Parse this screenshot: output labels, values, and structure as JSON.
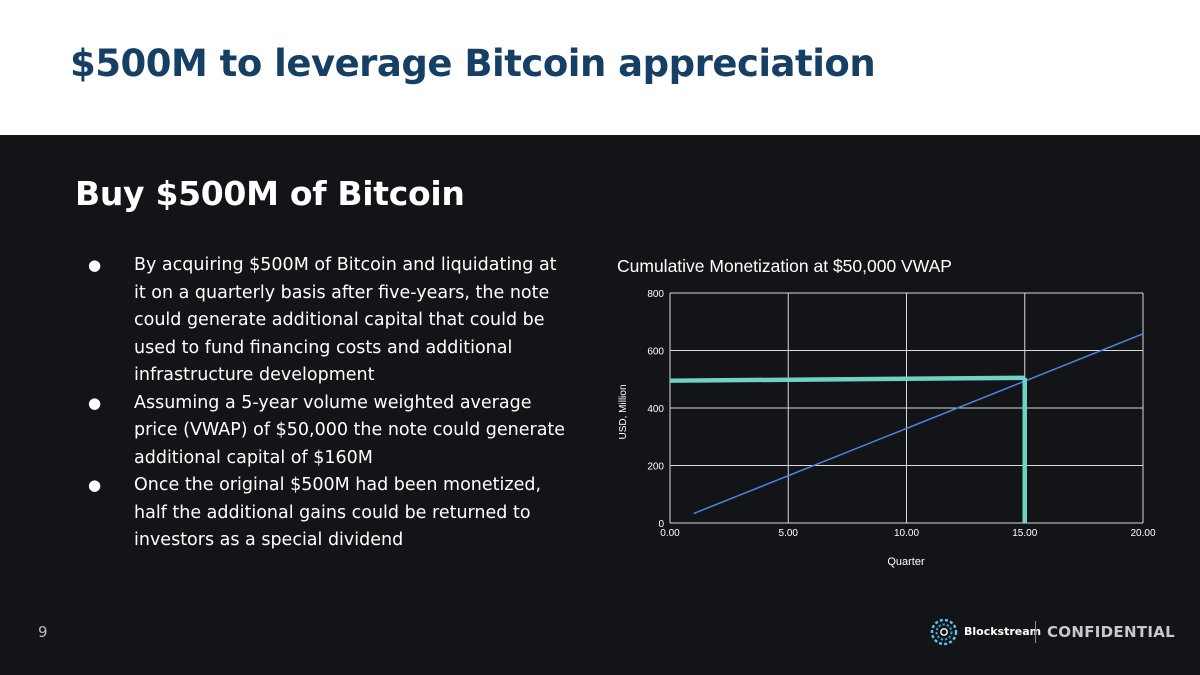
{
  "slide": {
    "title": "$500M to leverage Bitcoin appreciation",
    "section_title": "Buy $500M of Bitcoin",
    "page_number": "9"
  },
  "bullets": [
    "By acquiring $500M of Bitcoin and liquidating at it on a quarterly basis after five-years, the note could generate additional capital that could be used to fund financing costs and additional infrastructure development",
    "Assuming a 5-year volume weighted average price (VWAP) of $50,000 the note could generate additional capital of $160M",
    "Once the original $500M had been monetized, half the additional gains could be returned to investors as a special dividend"
  ],
  "bullet_glyph": "●",
  "footer": {
    "brand": "Blockstream",
    "label": "CONFIDENTIAL",
    "logo_icon": "blockstream-logo-icon"
  },
  "colors": {
    "title": "#163f66",
    "background": "#131418",
    "line": "#4a86e8",
    "highlight": "#6fd3c4"
  },
  "chart_data": {
    "type": "line",
    "title": "Cumulative Monetization at $50,000 VWAP",
    "xlabel": "Quarter",
    "ylabel": "USD, Million",
    "xlim": [
      0,
      20
    ],
    "ylim": [
      0,
      800
    ],
    "xticks": [
      0,
      5,
      10,
      15,
      20
    ],
    "xtick_labels": [
      "0.00",
      "5.00",
      "10.00",
      "15.00",
      "20.00"
    ],
    "yticks": [
      0,
      200,
      400,
      600,
      800
    ],
    "ytick_labels": [
      "0",
      "200",
      "400",
      "600",
      "800"
    ],
    "grid": true,
    "series": [
      {
        "name": "Cumulative Monetization",
        "x": [
          1,
          20
        ],
        "y": [
          33,
          658
        ],
        "color": "#4a86e8"
      }
    ],
    "annotations": [
      {
        "name": "$500M threshold",
        "type": "hline",
        "x": [
          0,
          15
        ],
        "y": [
          495,
          505
        ],
        "color": "#6fd3c4"
      },
      {
        "name": "Quarter 15 marker",
        "type": "vline",
        "x": [
          15,
          15
        ],
        "y": [
          0,
          505
        ],
        "color": "#6fd3c4"
      }
    ]
  }
}
